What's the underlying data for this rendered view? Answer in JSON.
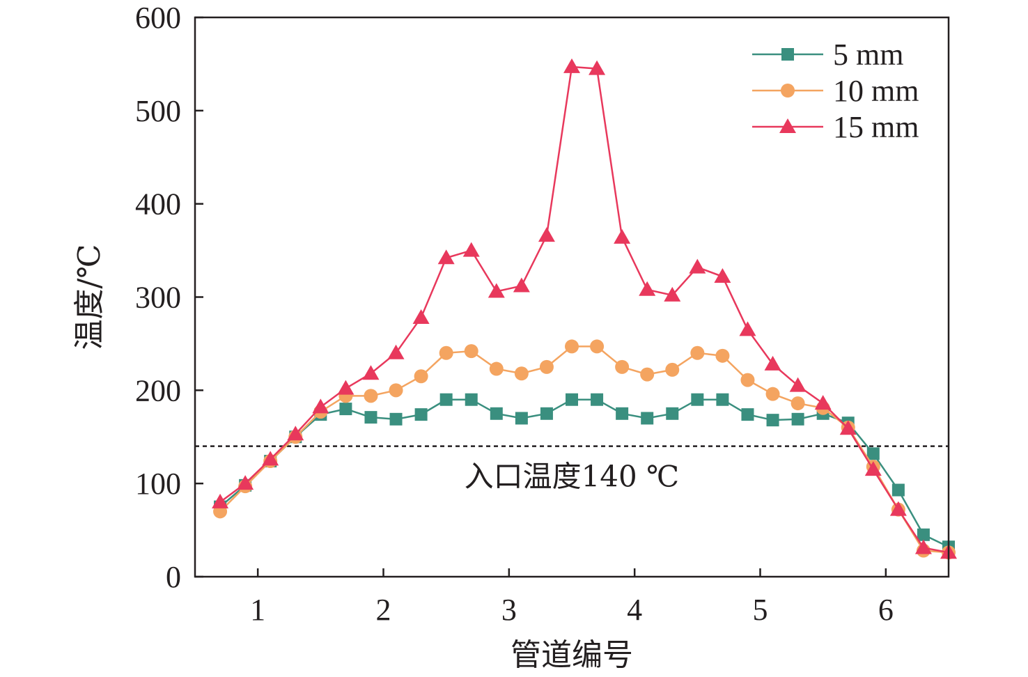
{
  "chart_data": {
    "type": "line",
    "xlabel": "管道编号",
    "ylabel": "温度/℃",
    "xlim": [
      0.5,
      6.5
    ],
    "ylim": [
      0,
      600
    ],
    "x_ticks": [
      1,
      2,
      3,
      4,
      5,
      6
    ],
    "y_ticks": [
      0,
      100,
      200,
      300,
      400,
      500,
      600
    ],
    "x_tick_labels": [
      "1",
      "2",
      "3",
      "4",
      "5",
      "6"
    ],
    "y_tick_labels": [
      "0",
      "100",
      "200",
      "300",
      "400",
      "500",
      "600"
    ],
    "legend_position": "top-right",
    "x": [
      0.7,
      0.9,
      1.1,
      1.3,
      1.5,
      1.7,
      1.9,
      2.1,
      2.3,
      2.5,
      2.7,
      2.9,
      3.1,
      3.3,
      3.5,
      3.7,
      3.9,
      4.1,
      4.3,
      4.5,
      4.7,
      4.9,
      5.1,
      5.3,
      5.5,
      5.7,
      5.9,
      6.1,
      6.3,
      6.5
    ],
    "series": [
      {
        "name": "5 mm",
        "color": "#3a8f7f",
        "marker": "square",
        "values": [
          75,
          98,
          124,
          150,
          174,
          180,
          171,
          169,
          174,
          190,
          190,
          175,
          170,
          175,
          190,
          190,
          175,
          170,
          175,
          190,
          190,
          174,
          168,
          169,
          175,
          165,
          132,
          93,
          45,
          32
        ]
      },
      {
        "name": "10 mm",
        "color": "#f4a460",
        "marker": "circle",
        "values": [
          70,
          97,
          124,
          150,
          177,
          194,
          194,
          200,
          215,
          240,
          242,
          223,
          218,
          225,
          247,
          247,
          225,
          217,
          222,
          240,
          237,
          211,
          196,
          186,
          181,
          160,
          118,
          72,
          28,
          26
        ]
      },
      {
        "name": "15 mm",
        "color": "#e8385c",
        "marker": "triangle",
        "values": [
          80,
          100,
          126,
          153,
          182,
          202,
          218,
          240,
          278,
          342,
          350,
          306,
          312,
          366,
          547,
          545,
          364,
          308,
          302,
          332,
          322,
          265,
          228,
          205,
          186,
          159,
          115,
          72,
          31,
          26
        ]
      }
    ],
    "reference_line": {
      "y": 140,
      "label": "入口温度140 ℃"
    }
  }
}
